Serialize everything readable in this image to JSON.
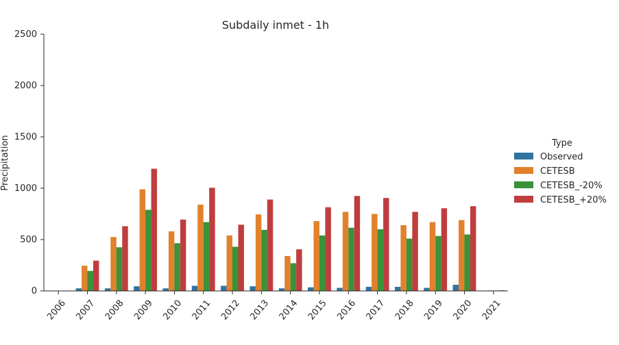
{
  "chart_data": {
    "type": "bar",
    "title": "Subdaily inmet - 1h",
    "xlabel": "",
    "ylabel": "Precipitation",
    "ylim": [
      0,
      2500
    ],
    "yticks": [
      0,
      500,
      1000,
      1500,
      2000,
      2500
    ],
    "categories": [
      "2006",
      "2007",
      "2008",
      "2009",
      "2010",
      "2011",
      "2012",
      "2013",
      "2014",
      "2015",
      "2016",
      "2017",
      "2018",
      "2019",
      "2020",
      "2021"
    ],
    "legend_title": "Type",
    "legend_position": "right",
    "grid": false,
    "series": [
      {
        "name": "Observed",
        "color": "#3274a1",
        "values": [
          0,
          25,
          25,
          45,
          25,
          50,
          50,
          45,
          25,
          35,
          30,
          40,
          40,
          30,
          60,
          3
        ]
      },
      {
        "name": "CETESB",
        "color": "#e1812c",
        "values": [
          0,
          245,
          525,
          990,
          580,
          840,
          540,
          745,
          340,
          680,
          770,
          750,
          640,
          670,
          690,
          5
        ]
      },
      {
        "name": "CETESB_-20%",
        "color": "#3a923a",
        "values": [
          0,
          195,
          425,
          790,
          465,
          670,
          430,
          595,
          270,
          540,
          615,
          600,
          510,
          535,
          550,
          4
        ]
      },
      {
        "name": "CETESB_+20%",
        "color": "#c03d3e",
        "values": [
          0,
          295,
          630,
          1190,
          695,
          1005,
          645,
          890,
          405,
          815,
          925,
          905,
          770,
          805,
          825,
          6
        ]
      }
    ]
  }
}
